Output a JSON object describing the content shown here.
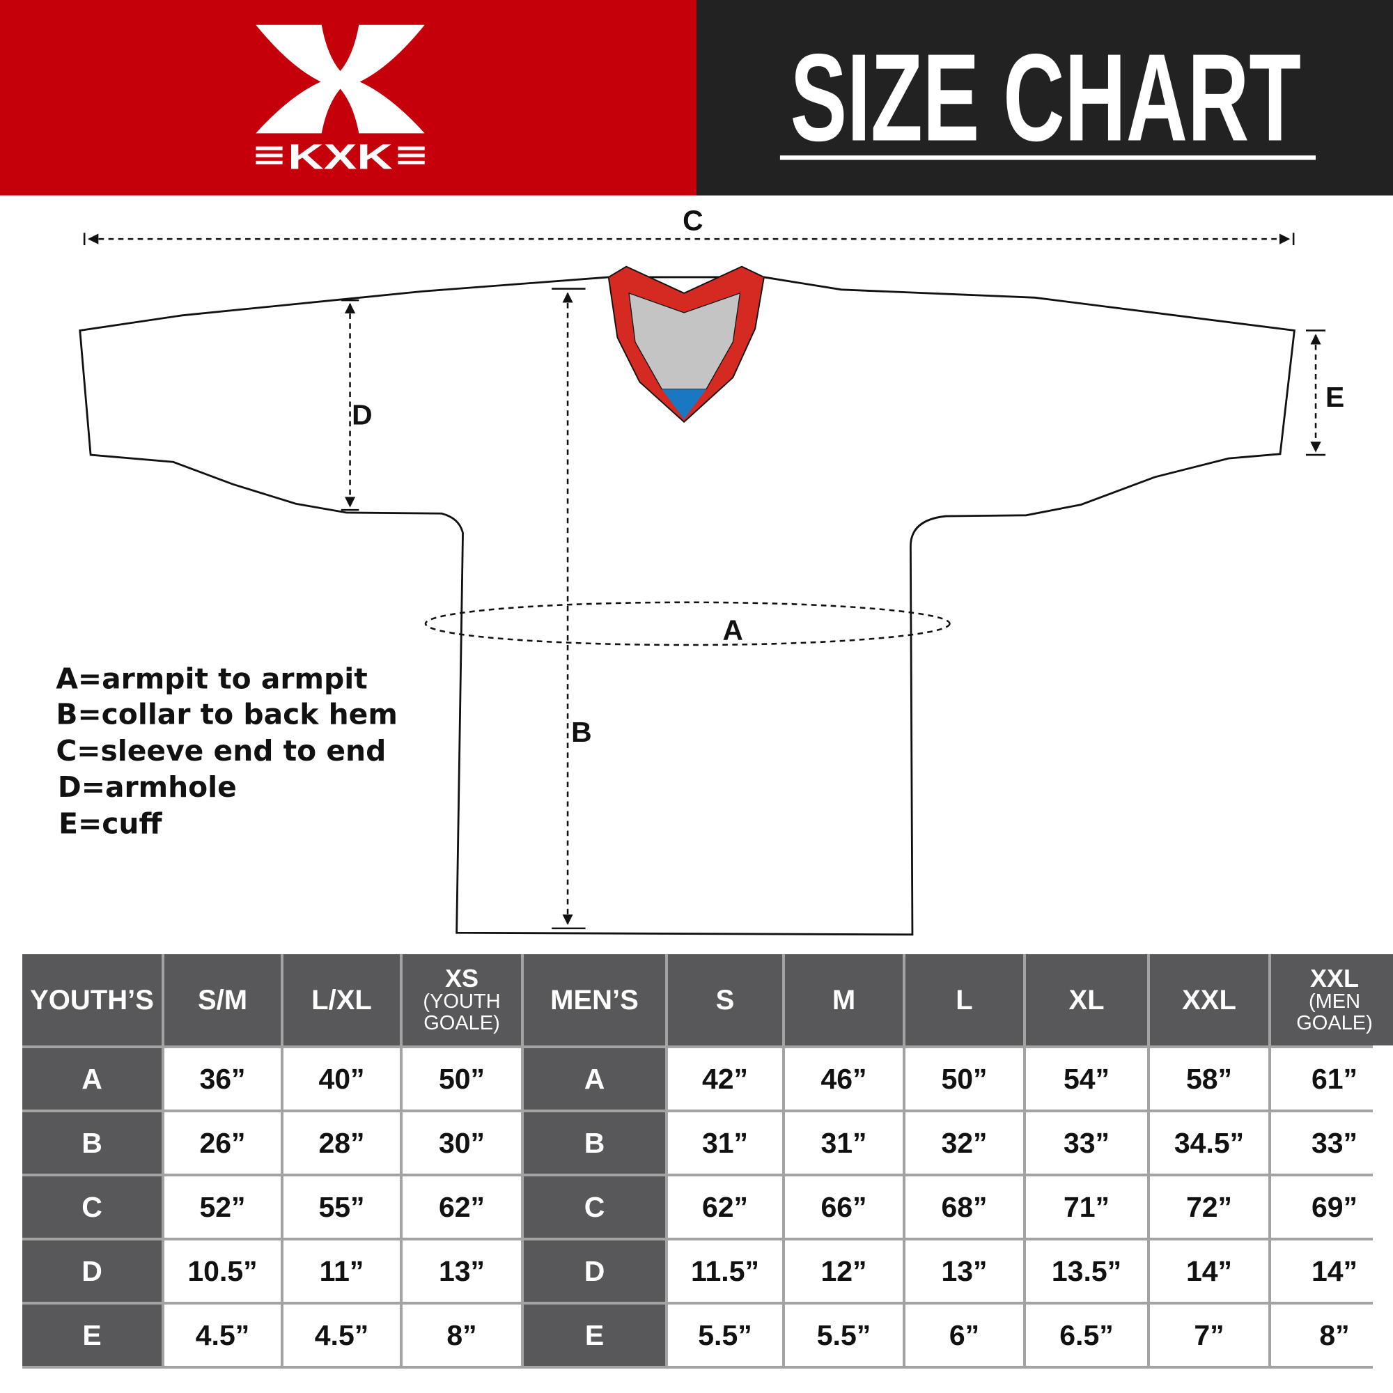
{
  "header": {
    "brand": "KXK",
    "title": "SIZE CHART",
    "colors": {
      "brand_red": "#c6000a",
      "dark": "#222222",
      "collar_red": "#d42a22",
      "collar_grey": "#c4c4c4",
      "collar_blue": "#1a78c2",
      "table_header": "#58585a"
    }
  },
  "diagram": {
    "labels": {
      "a": "A",
      "b": "B",
      "c": "C",
      "d": "D",
      "e": "E"
    },
    "legend": [
      "A=armpit to armpit",
      "B=collar to back hem",
      "C=sleeve end to end",
      "D=armhole",
      "E=cuff"
    ]
  },
  "table": {
    "headers": [
      {
        "main": "YOUTH’S",
        "sub": ""
      },
      {
        "main": "S/M",
        "sub": ""
      },
      {
        "main": "L/XL",
        "sub": ""
      },
      {
        "main": "XS",
        "sub": "(YOUTH GOALE)"
      },
      {
        "main": "MEN’S",
        "sub": ""
      },
      {
        "main": "S",
        "sub": ""
      },
      {
        "main": "M",
        "sub": ""
      },
      {
        "main": "L",
        "sub": ""
      },
      {
        "main": "XL",
        "sub": ""
      },
      {
        "main": "XXL",
        "sub": ""
      },
      {
        "main": "XXL",
        "sub": "(MEN GOALE)"
      }
    ],
    "rows": [
      [
        "A",
        "36”",
        "40”",
        "50”",
        "A",
        "42”",
        "46”",
        "50”",
        "54”",
        "58”",
        "61”"
      ],
      [
        "B",
        "26”",
        "28”",
        "30”",
        "B",
        "31”",
        "31”",
        "32”",
        "33”",
        "34.5”",
        "33”"
      ],
      [
        "C",
        "52”",
        "55”",
        "62”",
        "C",
        "62”",
        "66”",
        "68”",
        "71”",
        "72”",
        "69”"
      ],
      [
        "D",
        "10.5”",
        "11”",
        "13”",
        "D",
        "11.5”",
        "12”",
        "13”",
        "13.5”",
        "14”",
        "14”"
      ],
      [
        "E",
        "4.5”",
        "4.5”",
        "8”",
        "E",
        "5.5”",
        "5.5”",
        "6”",
        "6.5”",
        "7”",
        "8”"
      ]
    ]
  }
}
